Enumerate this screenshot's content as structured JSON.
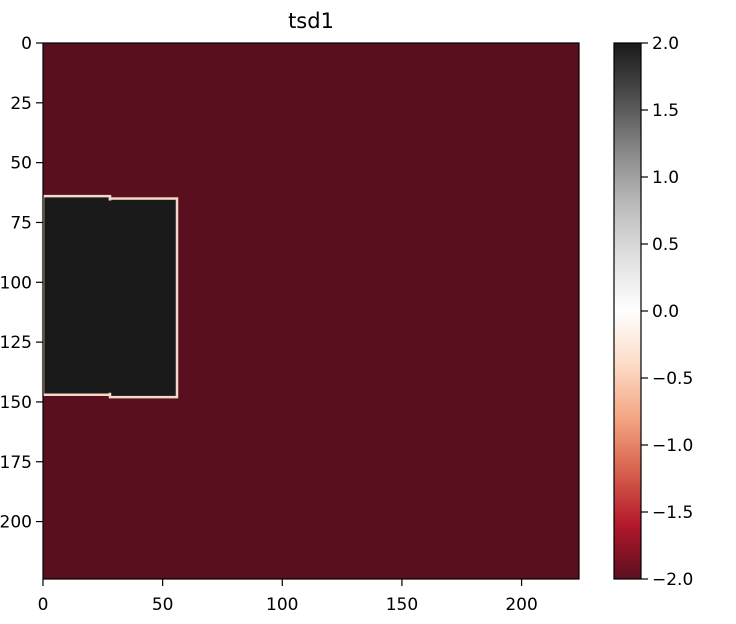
{
  "chart_data": {
    "type": "heatmap",
    "title": "tsd1",
    "xlabel": "",
    "ylabel": "",
    "x_range": [
      0,
      224
    ],
    "y_range": [
      224,
      0
    ],
    "x_ticks": [
      0,
      50,
      100,
      150,
      200
    ],
    "x_tick_labels": [
      "0",
      "50",
      "100",
      "150",
      "200"
    ],
    "y_ticks": [
      0,
      25,
      50,
      75,
      100,
      125,
      150,
      175,
      200
    ],
    "y_tick_labels": [
      "0",
      "25",
      "50",
      "75",
      "100",
      "125",
      "150",
      "175",
      "200"
    ],
    "background_value": -2.0,
    "regions": [
      {
        "x0": 0,
        "x1": 28,
        "y0": 64,
        "y1": 147,
        "value": 2.0
      },
      {
        "x0": 28,
        "x1": 56,
        "y0": 65,
        "y1": 148,
        "value": 2.0
      }
    ],
    "colorbar": {
      "range": [
        -2.0,
        2.0
      ],
      "ticks": [
        2.0,
        1.5,
        1.0,
        0.5,
        0.0,
        -0.5,
        -1.0,
        -1.5,
        -2.0
      ],
      "tick_labels": [
        "2.0",
        "1.5",
        "1.0",
        "0.5",
        "0.0",
        "−0.5",
        "−1.0",
        "−1.5",
        "−2.0"
      ],
      "colormap": "RdGy",
      "colors": [
        "#5a0f1f",
        "#b2182b",
        "#d6604d",
        "#f4a582",
        "#fddbc7",
        "#ffffff",
        "#e0e0e0",
        "#bababa",
        "#878787",
        "#4d4d4d",
        "#1a1a1a"
      ]
    },
    "grid": false
  }
}
